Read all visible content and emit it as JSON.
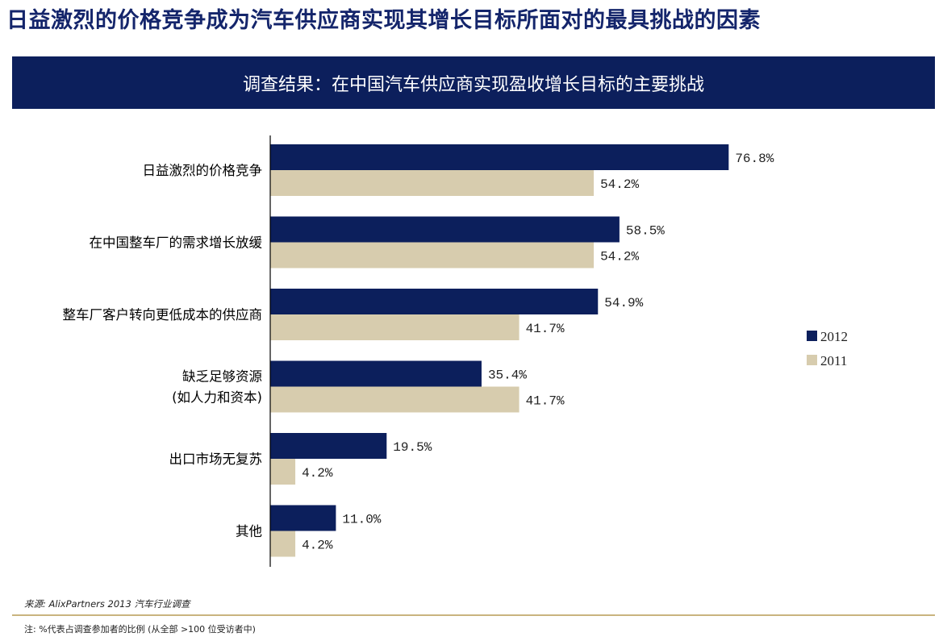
{
  "title": "日益激烈的价格竞争成为汽车供应商实现其增长目标所面对的最具挑战的因素",
  "banner": "调查结果：在中国汽车供应商实现盈收增长目标的主要挑战",
  "chart_data": {
    "type": "bar",
    "orientation": "horizontal",
    "categories": [
      [
        "日益激烈的价格竞争"
      ],
      [
        "在中国整车厂的需求增长放缓"
      ],
      [
        "整车厂客户转向更低成本的供应商"
      ],
      [
        "缺乏足够资源",
        "(如人力和资本)"
      ],
      [
        "出口市场无复苏"
      ],
      [
        "其他"
      ]
    ],
    "series": [
      {
        "name": "2012",
        "values": [
          76.8,
          58.5,
          54.9,
          35.4,
          19.5,
          11.0
        ],
        "labels": [
          "76.8%",
          "58.5%",
          "54.9%",
          "35.4%",
          "19.5%",
          "11.0%"
        ],
        "color": "#0c1f5c"
      },
      {
        "name": "2011",
        "values": [
          54.2,
          54.2,
          41.7,
          41.7,
          4.2,
          4.2
        ],
        "labels": [
          "54.2%",
          "54.2%",
          "41.7%",
          "41.7%",
          "4.2%",
          "4.2%"
        ],
        "color": "#d7ccae"
      }
    ],
    "xlim": [
      0,
      100
    ],
    "legend_position": "right",
    "grid": false
  },
  "source": "来源: AlixPartners 2013 汽车行业调查",
  "note": "注: %代表占调查参加者的比例 (从全部 >100 位受访者中)"
}
